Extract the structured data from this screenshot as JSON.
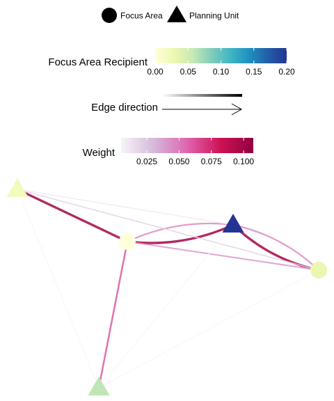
{
  "legend_shape": {
    "items": [
      {
        "label": "Focus Area",
        "shape": "circle"
      },
      {
        "label": "Planning Unit",
        "shape": "triangle"
      }
    ]
  },
  "legend_recipient": {
    "title": "Focus Area Recipient",
    "ticks": [
      "0.00",
      "0.05",
      "0.10",
      "0.15",
      "0.20"
    ],
    "colors": [
      "#ffffd9",
      "#edf8b1",
      "#c7e9b4",
      "#7fcdbb",
      "#41b6c4",
      "#1d91c0",
      "#225ea8",
      "#253494"
    ]
  },
  "legend_edge": {
    "title": "Edge direction"
  },
  "legend_weight": {
    "title": "Weight",
    "ticks": [
      "0.025",
      "0.050",
      "0.075",
      "0.100"
    ],
    "colors": [
      "#f7f4f9",
      "#d4b9da",
      "#df65b0",
      "#ce1256",
      "#91003f"
    ]
  },
  "network": {
    "nodes": [
      {
        "id": "n1",
        "shape": "triangle",
        "recipient": 0.02
      },
      {
        "id": "n2",
        "shape": "circle",
        "recipient": 0.0
      },
      {
        "id": "n3",
        "shape": "triangle",
        "recipient": 0.2
      },
      {
        "id": "n4",
        "shape": "circle",
        "recipient": 0.03
      },
      {
        "id": "n5",
        "shape": "triangle",
        "recipient": 0.06
      }
    ],
    "edges": [
      {
        "from": "n1",
        "to": "n2",
        "weight": 0.1
      },
      {
        "from": "n2",
        "to": "n3",
        "weight": 0.1
      },
      {
        "from": "n3",
        "to": "n2",
        "weight": 0.045
      },
      {
        "from": "n3",
        "to": "n4",
        "weight": 0.1
      },
      {
        "from": "n4",
        "to": "n3",
        "weight": 0.045
      },
      {
        "from": "n2",
        "to": "n4",
        "weight": 0.04
      },
      {
        "from": "n2",
        "to": "n5",
        "weight": 0.06
      },
      {
        "from": "n1",
        "to": "n3",
        "weight": 0.01
      },
      {
        "from": "n1",
        "to": "n4",
        "weight": 0.02
      },
      {
        "from": "n1",
        "to": "n5",
        "weight": 0.005
      },
      {
        "from": "n3",
        "to": "n5",
        "weight": 0.005
      },
      {
        "from": "n4",
        "to": "n5",
        "weight": 0.005
      }
    ]
  }
}
